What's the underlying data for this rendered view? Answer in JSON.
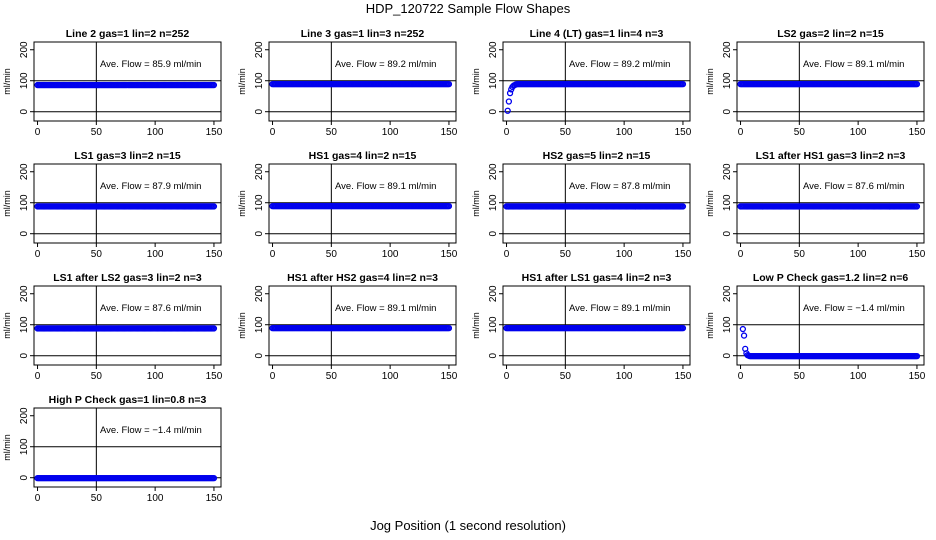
{
  "title": "HDP_120722  Sample Flow Shapes",
  "xlabel": "Jog Position (1 second resolution)",
  "chart_data": [
    {
      "type": "scatter",
      "title": "Line 2 gas=1 lin=2 n=252",
      "annotation": "Ave. Flow =  85.9  ml/min",
      "ylabel": "ml/min",
      "xlim": [
        -3,
        156
      ],
      "ylim": [
        -30,
        225
      ],
      "xticks": [
        0,
        50,
        100,
        150
      ],
      "yticks": [
        0,
        100,
        200
      ],
      "hline": [
        0,
        100
      ],
      "vline": 50,
      "series": [
        {
          "shape": "flat",
          "level": 86,
          "x_start": 0,
          "x_end": 150
        }
      ]
    },
    {
      "type": "scatter",
      "title": "Line 3 gas=1 lin=3 n=252",
      "annotation": "Ave. Flow =  89.2  ml/min",
      "ylabel": "ml/min",
      "xlim": [
        -3,
        156
      ],
      "ylim": [
        -30,
        225
      ],
      "xticks": [
        0,
        50,
        100,
        150
      ],
      "yticks": [
        0,
        100,
        200
      ],
      "hline": [
        0,
        100
      ],
      "vline": 50,
      "series": [
        {
          "shape": "flat",
          "level": 89,
          "x_start": 0,
          "x_end": 150
        }
      ]
    },
    {
      "type": "scatter",
      "title": "Line 4 (LT) gas=1 lin=4 n=3",
      "annotation": "Ave. Flow =  89.2  ml/min",
      "ylabel": "ml/min",
      "xlim": [
        -3,
        156
      ],
      "ylim": [
        -30,
        225
      ],
      "xticks": [
        0,
        50,
        100,
        150
      ],
      "yticks": [
        0,
        100,
        200
      ],
      "hline": [
        0,
        100
      ],
      "vline": 50,
      "series": [
        {
          "shape": "rise",
          "level": 89,
          "x_start": 0,
          "x_end": 150,
          "points": [
            [
              1,
              3
            ],
            [
              2,
              33
            ],
            [
              3,
              60
            ],
            [
              4,
              72
            ],
            [
              5,
              80
            ],
            [
              6,
              84
            ],
            [
              7,
              86
            ],
            [
              8,
              88
            ]
          ]
        }
      ]
    },
    {
      "type": "scatter",
      "title": "LS2 gas=2 lin=2 n=15",
      "annotation": "Ave. Flow =  89.1  ml/min",
      "ylabel": "ml/min",
      "xlim": [
        -3,
        156
      ],
      "ylim": [
        -30,
        225
      ],
      "xticks": [
        0,
        50,
        100,
        150
      ],
      "yticks": [
        0,
        100,
        200
      ],
      "hline": [
        0,
        100
      ],
      "vline": 50,
      "series": [
        {
          "shape": "flat",
          "level": 89,
          "x_start": 0,
          "x_end": 150
        }
      ]
    },
    {
      "type": "scatter",
      "title": "LS1 gas=3 lin=2 n=15",
      "annotation": "Ave. Flow =  87.9  ml/min",
      "ylabel": "ml/min",
      "xlim": [
        -3,
        156
      ],
      "ylim": [
        -30,
        225
      ],
      "xticks": [
        0,
        50,
        100,
        150
      ],
      "yticks": [
        0,
        100,
        200
      ],
      "hline": [
        0,
        100
      ],
      "vline": 50,
      "series": [
        {
          "shape": "flat",
          "level": 88,
          "x_start": 0,
          "x_end": 150
        }
      ]
    },
    {
      "type": "scatter",
      "title": "HS1 gas=4 lin=2 n=15",
      "annotation": "Ave. Flow =  89.1  ml/min",
      "ylabel": "ml/min",
      "xlim": [
        -3,
        156
      ],
      "ylim": [
        -30,
        225
      ],
      "xticks": [
        0,
        50,
        100,
        150
      ],
      "yticks": [
        0,
        100,
        200
      ],
      "hline": [
        0,
        100
      ],
      "vline": 50,
      "series": [
        {
          "shape": "flat",
          "level": 89,
          "x_start": 0,
          "x_end": 150
        }
      ]
    },
    {
      "type": "scatter",
      "title": "HS2 gas=5 lin=2 n=15",
      "annotation": "Ave. Flow =  87.8  ml/min",
      "ylabel": "ml/min",
      "xlim": [
        -3,
        156
      ],
      "ylim": [
        -30,
        225
      ],
      "xticks": [
        0,
        50,
        100,
        150
      ],
      "yticks": [
        0,
        100,
        200
      ],
      "hline": [
        0,
        100
      ],
      "vline": 50,
      "series": [
        {
          "shape": "flat",
          "level": 88,
          "x_start": 0,
          "x_end": 150
        }
      ]
    },
    {
      "type": "scatter",
      "title": "LS1 after HS1 gas=3 lin=2 n=3",
      "annotation": "Ave. Flow =  87.6  ml/min",
      "ylabel": "ml/min",
      "xlim": [
        -3,
        156
      ],
      "ylim": [
        -30,
        225
      ],
      "xticks": [
        0,
        50,
        100,
        150
      ],
      "yticks": [
        0,
        100,
        200
      ],
      "hline": [
        0,
        100
      ],
      "vline": 50,
      "series": [
        {
          "shape": "flat",
          "level": 88,
          "x_start": 0,
          "x_end": 150
        }
      ]
    },
    {
      "type": "scatter",
      "title": "LS1 after LS2 gas=3 lin=2 n=3",
      "annotation": "Ave. Flow =  87.6  ml/min",
      "ylabel": "ml/min",
      "xlim": [
        -3,
        156
      ],
      "ylim": [
        -30,
        225
      ],
      "xticks": [
        0,
        50,
        100,
        150
      ],
      "yticks": [
        0,
        100,
        200
      ],
      "hline": [
        0,
        100
      ],
      "vline": 50,
      "series": [
        {
          "shape": "flat",
          "level": 88,
          "x_start": 0,
          "x_end": 150
        }
      ]
    },
    {
      "type": "scatter",
      "title": "HS1 after HS2 gas=4 lin=2 n=3",
      "annotation": "Ave. Flow =  89.1  ml/min",
      "ylabel": "ml/min",
      "xlim": [
        -3,
        156
      ],
      "ylim": [
        -30,
        225
      ],
      "xticks": [
        0,
        50,
        100,
        150
      ],
      "yticks": [
        0,
        100,
        200
      ],
      "hline": [
        0,
        100
      ],
      "vline": 50,
      "series": [
        {
          "shape": "flat",
          "level": 89,
          "x_start": 0,
          "x_end": 150
        }
      ]
    },
    {
      "type": "scatter",
      "title": "HS1 after LS1 gas=4 lin=2 n=3",
      "annotation": "Ave. Flow =  89.1  ml/min",
      "ylabel": "ml/min",
      "xlim": [
        -3,
        156
      ],
      "ylim": [
        -30,
        225
      ],
      "xticks": [
        0,
        50,
        100,
        150
      ],
      "yticks": [
        0,
        100,
        200
      ],
      "hline": [
        0,
        100
      ],
      "vline": 50,
      "series": [
        {
          "shape": "flat",
          "level": 89,
          "x_start": 0,
          "x_end": 150
        }
      ]
    },
    {
      "type": "scatter",
      "title": "Low P Check gas=1.2 lin=2 n=6",
      "annotation": "Ave. Flow =  −1.4  ml/min",
      "ylabel": "ml/min",
      "xlim": [
        -3,
        156
      ],
      "ylim": [
        -30,
        225
      ],
      "xticks": [
        0,
        50,
        100,
        150
      ],
      "yticks": [
        0,
        100,
        200
      ],
      "hline": [
        0,
        100
      ],
      "vline": 50,
      "series": [
        {
          "shape": "decay",
          "level": -1.4,
          "x_start": 0,
          "x_end": 150,
          "points": [
            [
              2,
              86
            ],
            [
              3,
              65
            ],
            [
              4,
              22
            ],
            [
              5,
              8
            ],
            [
              6,
              2
            ],
            [
              7,
              0
            ]
          ]
        }
      ]
    },
    {
      "type": "scatter",
      "title": "High P Check gas=1 lin=0.8 n=3",
      "annotation": "Ave. Flow =  −1.4  ml/min",
      "ylabel": "ml/min",
      "xlim": [
        -3,
        156
      ],
      "ylim": [
        -30,
        225
      ],
      "xticks": [
        0,
        50,
        100,
        150
      ],
      "yticks": [
        0,
        100,
        200
      ],
      "hline": [
        0,
        100
      ],
      "vline": 50,
      "series": [
        {
          "shape": "flat",
          "level": -1.4,
          "x_start": 0,
          "x_end": 150
        }
      ]
    }
  ],
  "colors": {
    "points": "#0000ee",
    "axes": "#000000"
  }
}
